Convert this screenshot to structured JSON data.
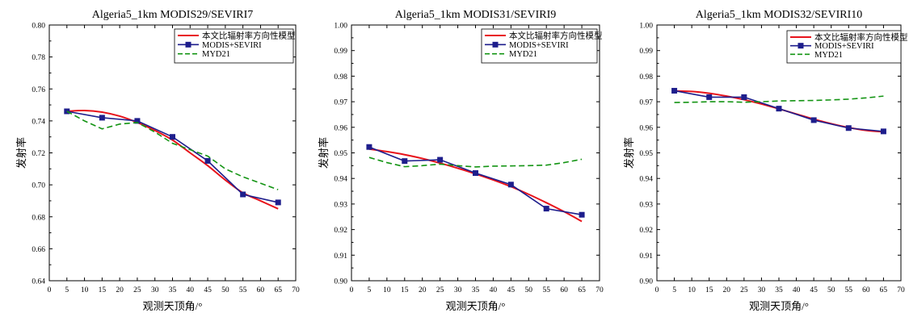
{
  "chart_data": [
    {
      "type": "line",
      "title": "Algeria5_1km MODIS29/SEVIRI7",
      "xlabel": "观测天顶角/°",
      "ylabel": "发射率",
      "xlim": [
        0,
        70
      ],
      "ylim": [
        0.64,
        0.8
      ],
      "xticks": [
        0,
        5,
        10,
        15,
        20,
        25,
        30,
        35,
        40,
        45,
        50,
        55,
        60,
        65,
        70
      ],
      "yticks": [
        "0.64",
        "0.66",
        "0.68",
        "0.70",
        "0.72",
        "0.74",
        "0.76",
        "0.78",
        "0.80"
      ],
      "legend_position": "top-right",
      "series": [
        {
          "name": "本文比辐射率方向性模型",
          "color": "#e8131b",
          "style": "solid-smooth",
          "x": [
            5,
            10,
            15,
            20,
            25,
            30,
            35,
            40,
            45,
            50,
            55,
            60,
            65
          ],
          "y": [
            0.746,
            0.7465,
            0.7455,
            0.743,
            0.739,
            0.734,
            0.728,
            0.72,
            0.712,
            0.703,
            0.695,
            0.69,
            0.685
          ]
        },
        {
          "name": "MODIS+SEVIRI",
          "color": "#1e1e8c",
          "style": "line-square",
          "x": [
            5,
            15,
            25,
            35,
            45,
            55,
            65
          ],
          "y": [
            0.746,
            0.742,
            0.74,
            0.73,
            0.715,
            0.694,
            0.689
          ]
        },
        {
          "name": "MYD21",
          "color": "#139413",
          "style": "dashed",
          "x": [
            5,
            10,
            15,
            20,
            25,
            30,
            35,
            40,
            45,
            50,
            55,
            60,
            65
          ],
          "y": [
            0.746,
            0.74,
            0.735,
            0.738,
            0.739,
            0.733,
            0.726,
            0.722,
            0.718,
            0.71,
            0.705,
            0.701,
            0.697
          ]
        }
      ]
    },
    {
      "type": "line",
      "title": "Algeria5_1km MODIS31/SEVIRI9",
      "xlabel": "观测天顶角/°",
      "ylabel": "发射率",
      "xlim": [
        0,
        70
      ],
      "ylim": [
        0.9,
        1.0
      ],
      "xticks": [
        0,
        5,
        10,
        15,
        20,
        25,
        30,
        35,
        40,
        45,
        50,
        55,
        60,
        65,
        70
      ],
      "yticks": [
        "0.90",
        "0.91",
        "0.92",
        "0.93",
        "0.94",
        "0.95",
        "0.96",
        "0.97",
        "0.98",
        "0.99",
        "1.00"
      ],
      "legend_position": "top-right",
      "series": [
        {
          "name": "本文比辐射率方向性模型",
          "color": "#e8131b",
          "style": "solid-smooth",
          "x": [
            5,
            10,
            15,
            20,
            25,
            30,
            35,
            40,
            45,
            50,
            55,
            60,
            65
          ],
          "y": [
            0.9515,
            0.9505,
            0.9493,
            0.9478,
            0.946,
            0.944,
            0.9418,
            0.9394,
            0.9368,
            0.9338,
            0.9305,
            0.927,
            0.9232
          ]
        },
        {
          "name": "MODIS+SEVIRI",
          "color": "#1e1e8c",
          "style": "line-square",
          "x": [
            5,
            15,
            25,
            35,
            45,
            55,
            65
          ],
          "y": [
            0.9523,
            0.9468,
            0.9473,
            0.9421,
            0.9376,
            0.9282,
            0.9258
          ]
        },
        {
          "name": "MYD21",
          "color": "#139413",
          "style": "dashed",
          "x": [
            5,
            10,
            15,
            20,
            25,
            30,
            35,
            40,
            45,
            50,
            55,
            60,
            65
          ],
          "y": [
            0.9482,
            0.9462,
            0.9446,
            0.945,
            0.9456,
            0.945,
            0.9445,
            0.9448,
            0.9449,
            0.945,
            0.9452,
            0.9462,
            0.9475
          ]
        }
      ]
    },
    {
      "type": "line",
      "title": "Algeria5_1km MODIS32/SEVIRI10",
      "xlabel": "观测天顶角/°",
      "ylabel": "发射率",
      "xlim": [
        0,
        70
      ],
      "ylim": [
        0.9,
        1.0
      ],
      "xticks": [
        0,
        5,
        10,
        15,
        20,
        25,
        30,
        35,
        40,
        45,
        50,
        55,
        60,
        65,
        70
      ],
      "yticks": [
        "0.90",
        "0.91",
        "0.92",
        "0.93",
        "0.94",
        "0.95",
        "0.96",
        "0.97",
        "0.98",
        "0.99",
        "1.00"
      ],
      "legend_position": "top-right",
      "series": [
        {
          "name": "本文比辐射率方向性模型",
          "color": "#e8131b",
          "style": "solid-smooth",
          "x": [
            5,
            10,
            15,
            20,
            25,
            30,
            35,
            40,
            45,
            50,
            55,
            60,
            65
          ],
          "y": [
            0.9742,
            0.974,
            0.9733,
            0.9722,
            0.9708,
            0.9691,
            0.9672,
            0.9652,
            0.9632,
            0.9614,
            0.9599,
            0.9588,
            0.9582
          ]
        },
        {
          "name": "MODIS+SEVIRI",
          "color": "#1e1e8c",
          "style": "line-square",
          "x": [
            5,
            15,
            25,
            35,
            45,
            55,
            65
          ],
          "y": [
            0.9743,
            0.9718,
            0.9718,
            0.9673,
            0.9628,
            0.9597,
            0.9584
          ]
        },
        {
          "name": "MYD21",
          "color": "#139413",
          "style": "dashed",
          "x": [
            5,
            10,
            15,
            20,
            25,
            30,
            35,
            40,
            45,
            50,
            55,
            60,
            65
          ],
          "y": [
            0.9697,
            0.9698,
            0.97,
            0.97,
            0.9698,
            0.97,
            0.9703,
            0.9704,
            0.9705,
            0.9707,
            0.971,
            0.9715,
            0.9722
          ]
        }
      ]
    }
  ]
}
